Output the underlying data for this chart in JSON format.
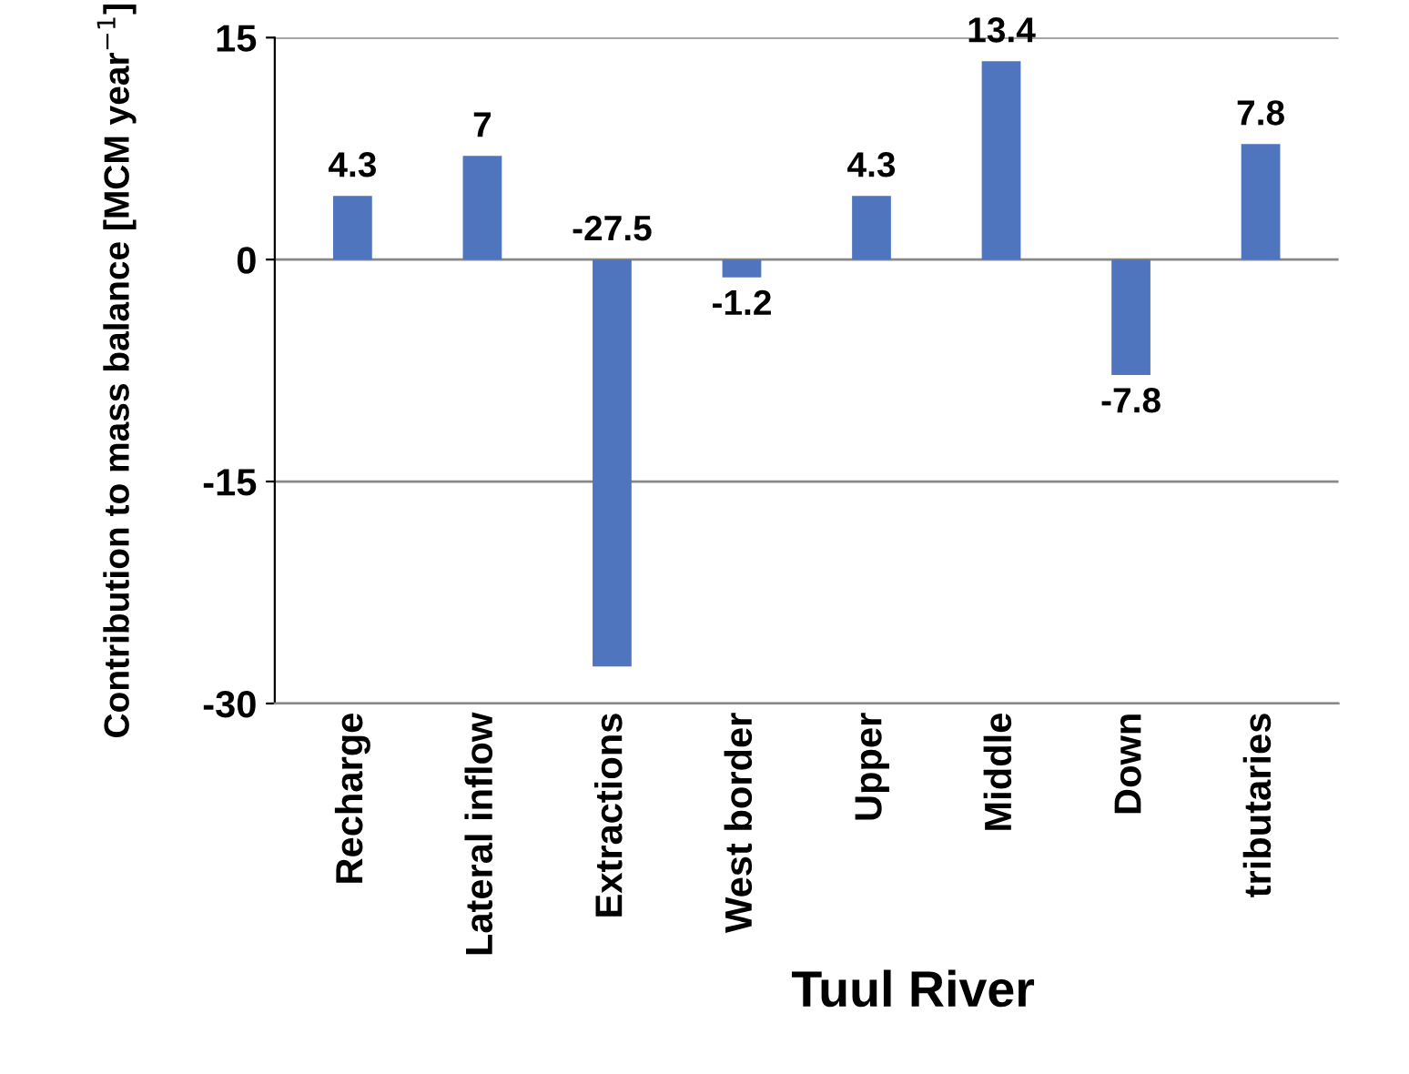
{
  "chart_data": {
    "type": "bar",
    "categories": [
      "Recharge",
      "Lateral inflow",
      "Extractions",
      "West border",
      "Upper",
      "Middle",
      "Down",
      "tributaries"
    ],
    "values": [
      4.3,
      7,
      -27.5,
      -1.2,
      4.3,
      13.4,
      -7.8,
      7.8
    ],
    "color": "#4f75be",
    "ylabel": "Contribution to mass balance [MCM year$^{−1}$]",
    "xlabel": "Tuul River",
    "ylim": [
      -30,
      15
    ],
    "yticks": [
      -30,
      -15,
      0,
      15
    ],
    "grid": "y",
    "data_labels": true
  }
}
